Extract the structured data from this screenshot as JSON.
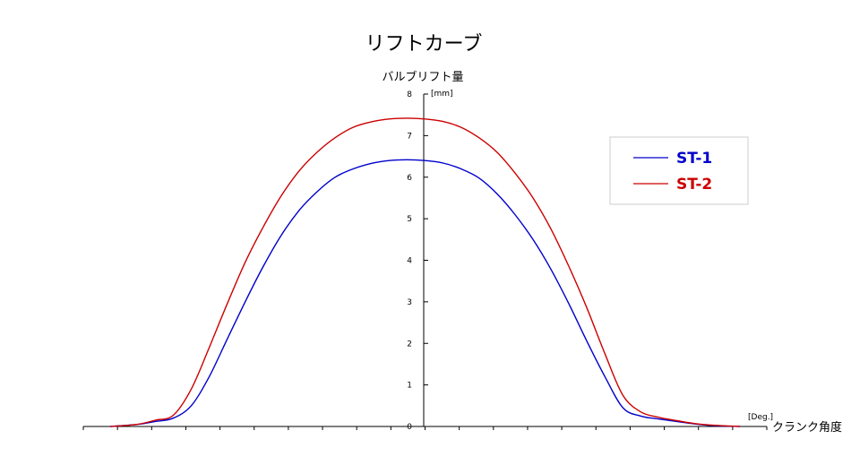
{
  "chart_data": {
    "type": "line",
    "title": "リフトカーブ",
    "ylabel": "バルブリフト量",
    "yunit": "[mm]",
    "xlabel": "クランク角度",
    "xunit": "[Deg.]",
    "ylim": [
      0,
      8
    ],
    "yticks": [
      "0",
      "1",
      "2",
      "3",
      "4",
      "5",
      "6",
      "7",
      "8"
    ],
    "xlim": [
      -190,
      190
    ],
    "grid": false,
    "legend_position": "top-right",
    "series": [
      {
        "name": "ST-1",
        "color": "#0000cc",
        "x": [
          -175,
          -160,
          -150,
          -140,
          -130,
          -120,
          -110,
          -100,
          -90,
          -80,
          -70,
          -60,
          -50,
          -40,
          -30,
          -20,
          -10,
          0,
          10,
          20,
          30,
          40,
          50,
          60,
          70,
          80,
          90,
          100,
          110,
          120,
          130,
          140,
          150,
          160,
          175
        ],
        "y": [
          0,
          0.05,
          0.12,
          0.2,
          0.5,
          1.2,
          2.1,
          3.0,
          3.85,
          4.6,
          5.2,
          5.65,
          6.0,
          6.2,
          6.33,
          6.4,
          6.42,
          6.4,
          6.34,
          6.2,
          5.98,
          5.6,
          5.1,
          4.5,
          3.78,
          2.95,
          2.05,
          1.2,
          0.45,
          0.25,
          0.18,
          0.12,
          0.06,
          0.02,
          0
        ]
      },
      {
        "name": "ST-2",
        "color": "#cc0000",
        "x": [
          -175,
          -160,
          -150,
          -140,
          -130,
          -120,
          -110,
          -100,
          -90,
          -80,
          -70,
          -60,
          -50,
          -40,
          -30,
          -20,
          -10,
          0,
          10,
          20,
          30,
          40,
          50,
          60,
          70,
          80,
          90,
          100,
          110,
          120,
          130,
          140,
          150,
          160,
          175
        ],
        "y": [
          0,
          0.05,
          0.15,
          0.27,
          0.9,
          1.9,
          2.95,
          3.95,
          4.8,
          5.55,
          6.15,
          6.6,
          6.95,
          7.2,
          7.33,
          7.4,
          7.42,
          7.4,
          7.34,
          7.2,
          6.95,
          6.6,
          6.1,
          5.5,
          4.75,
          3.85,
          2.85,
          1.75,
          0.75,
          0.35,
          0.22,
          0.14,
          0.07,
          0.03,
          0
        ]
      }
    ]
  }
}
